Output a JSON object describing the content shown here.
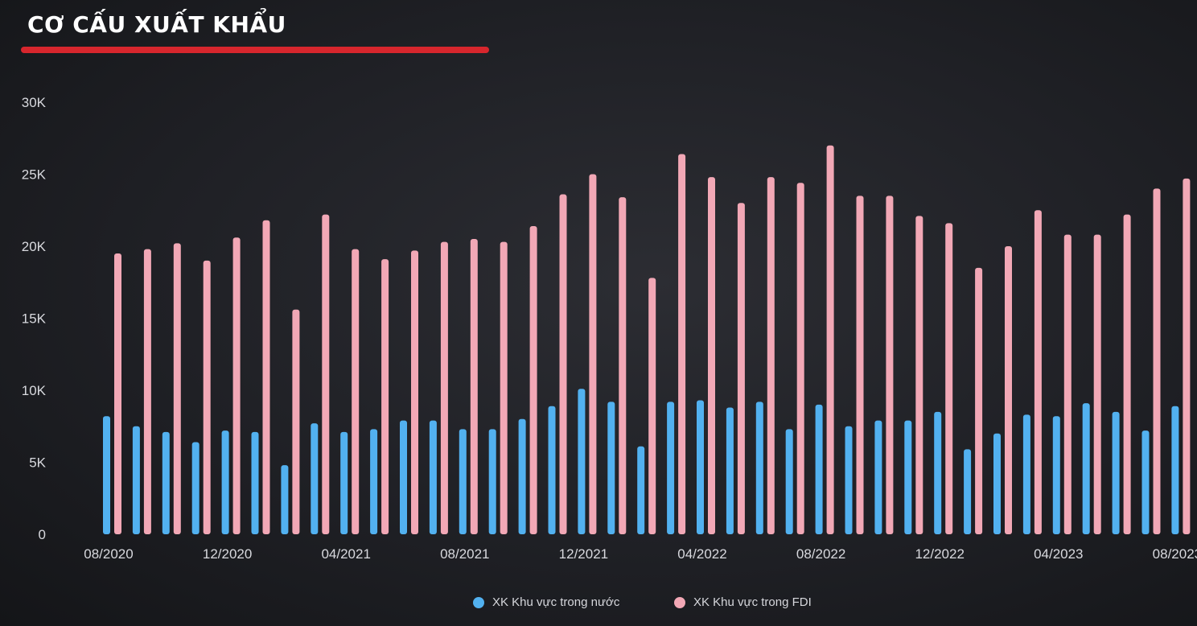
{
  "title": "CƠ CẤU XUẤT KHẨU",
  "colors": {
    "accent": "#d7262d",
    "domestic": "#52b1f0",
    "fdi": "#f2a8b6"
  },
  "chart_data": {
    "type": "bar",
    "categories": [
      "08/2020",
      "09/2020",
      "10/2020",
      "11/2020",
      "12/2020",
      "01/2021",
      "02/2021",
      "03/2021",
      "04/2021",
      "05/2021",
      "06/2021",
      "07/2021",
      "08/2021",
      "09/2021",
      "10/2021",
      "11/2021",
      "12/2021",
      "01/2022",
      "02/2022",
      "03/2022",
      "04/2022",
      "05/2022",
      "06/2022",
      "07/2022",
      "08/2022",
      "09/2022",
      "10/2022",
      "11/2022",
      "12/2022",
      "01/2023",
      "02/2023",
      "03/2023",
      "04/2023",
      "05/2023",
      "06/2023",
      "07/2023",
      "08/2023"
    ],
    "tick_labels": [
      "08/2020",
      "12/2020",
      "04/2021",
      "08/2021",
      "12/2021",
      "04/2022",
      "08/2022",
      "12/2022",
      "04/2023",
      "08/2023"
    ],
    "y_ticks": [
      "0",
      "5K",
      "10K",
      "15K",
      "20K",
      "25K",
      "30K"
    ],
    "ylim": [
      0,
      30000
    ],
    "series": [
      {
        "name": "XK Khu vực trong nước",
        "values": [
          8200,
          7500,
          7100,
          6400,
          7200,
          7100,
          4800,
          7700,
          7100,
          7300,
          7900,
          7900,
          7300,
          7300,
          8000,
          8900,
          10100,
          9200,
          6100,
          9200,
          9300,
          8800,
          9200,
          7300,
          9000,
          7500,
          7900,
          7900,
          8500,
          5900,
          7000,
          8300,
          8200,
          9100,
          8500,
          7200,
          8900
        ]
      },
      {
        "name": "XK Khu vực trong FDI",
        "values": [
          19500,
          19800,
          20200,
          19000,
          20600,
          21800,
          15600,
          22200,
          19800,
          19100,
          19700,
          20300,
          20500,
          20300,
          21400,
          23600,
          25000,
          23400,
          17800,
          26400,
          24800,
          23000,
          24800,
          24400,
          27000,
          23500,
          23500,
          22100,
          21600,
          18500,
          20000,
          22500,
          20800,
          20800,
          22200,
          24000,
          24700
        ]
      }
    ],
    "xlabel": "",
    "ylabel": "",
    "legend": "bottom-center",
    "grid": false
  }
}
